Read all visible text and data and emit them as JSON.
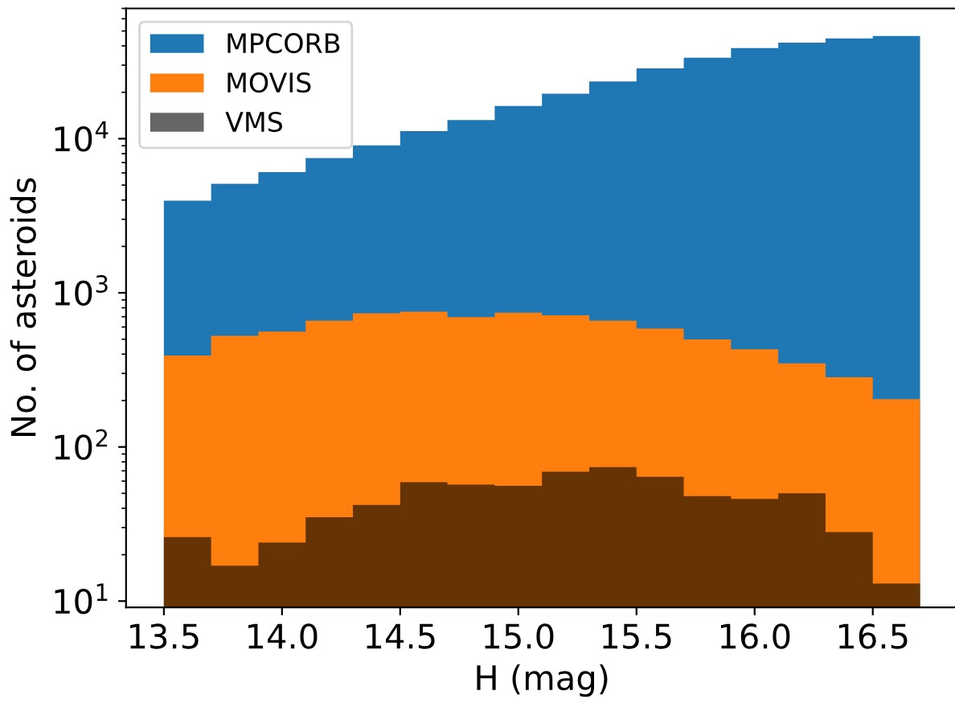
{
  "chart_data": {
    "type": "histogram",
    "xlabel": "H (mag)",
    "ylabel": "No. of asteroids",
    "bins": [
      13.5,
      13.7,
      13.9,
      14.1,
      14.3,
      14.5,
      14.7,
      14.9,
      15.1,
      15.3,
      15.5,
      15.7,
      15.9,
      16.1,
      16.3,
      16.5,
      16.7
    ],
    "series": [
      {
        "name": "MPCORB",
        "color": "#1f77b4",
        "values": [
          3960,
          5100,
          6070,
          7480,
          9040,
          11200,
          13200,
          16300,
          19600,
          23500,
          28600,
          33500,
          38700,
          42000,
          44800,
          46400
        ]
      },
      {
        "name": "MOVIS",
        "color": "#ff7f0e",
        "values": [
          392,
          526,
          560,
          659,
          736,
          755,
          696,
          743,
          714,
          659,
          586,
          498,
          430,
          349,
          283,
          204
        ]
      },
      {
        "name": "VMS",
        "color": "#000000",
        "values": [
          26,
          17,
          24,
          35,
          42,
          59,
          57,
          56,
          69,
          74,
          64,
          48,
          46,
          50,
          28,
          13
        ]
      }
    ],
    "log": "y",
    "xlim": [
      13.34,
      16.86
    ],
    "ylim": [
      9.1,
      70000
    ],
    "xticks": [
      {
        "value": 13.5,
        "label": "13.5"
      },
      {
        "value": 14.0,
        "label": "14.0"
      },
      {
        "value": 14.5,
        "label": "14.5"
      },
      {
        "value": 15.0,
        "label": "15.0"
      },
      {
        "value": 15.5,
        "label": "15.5"
      },
      {
        "value": 16.0,
        "label": "16.0"
      },
      {
        "value": 16.5,
        "label": "16.5"
      }
    ],
    "yticks": [
      {
        "value": 10,
        "label": "10$^{1}$"
      },
      {
        "value": 100,
        "label": "10$^{2}$"
      },
      {
        "value": 1000,
        "label": "10$^{3}$"
      },
      {
        "value": 10000,
        "label": "10$^{4}$"
      }
    ],
    "legend": "top left",
    "grid": false
  }
}
